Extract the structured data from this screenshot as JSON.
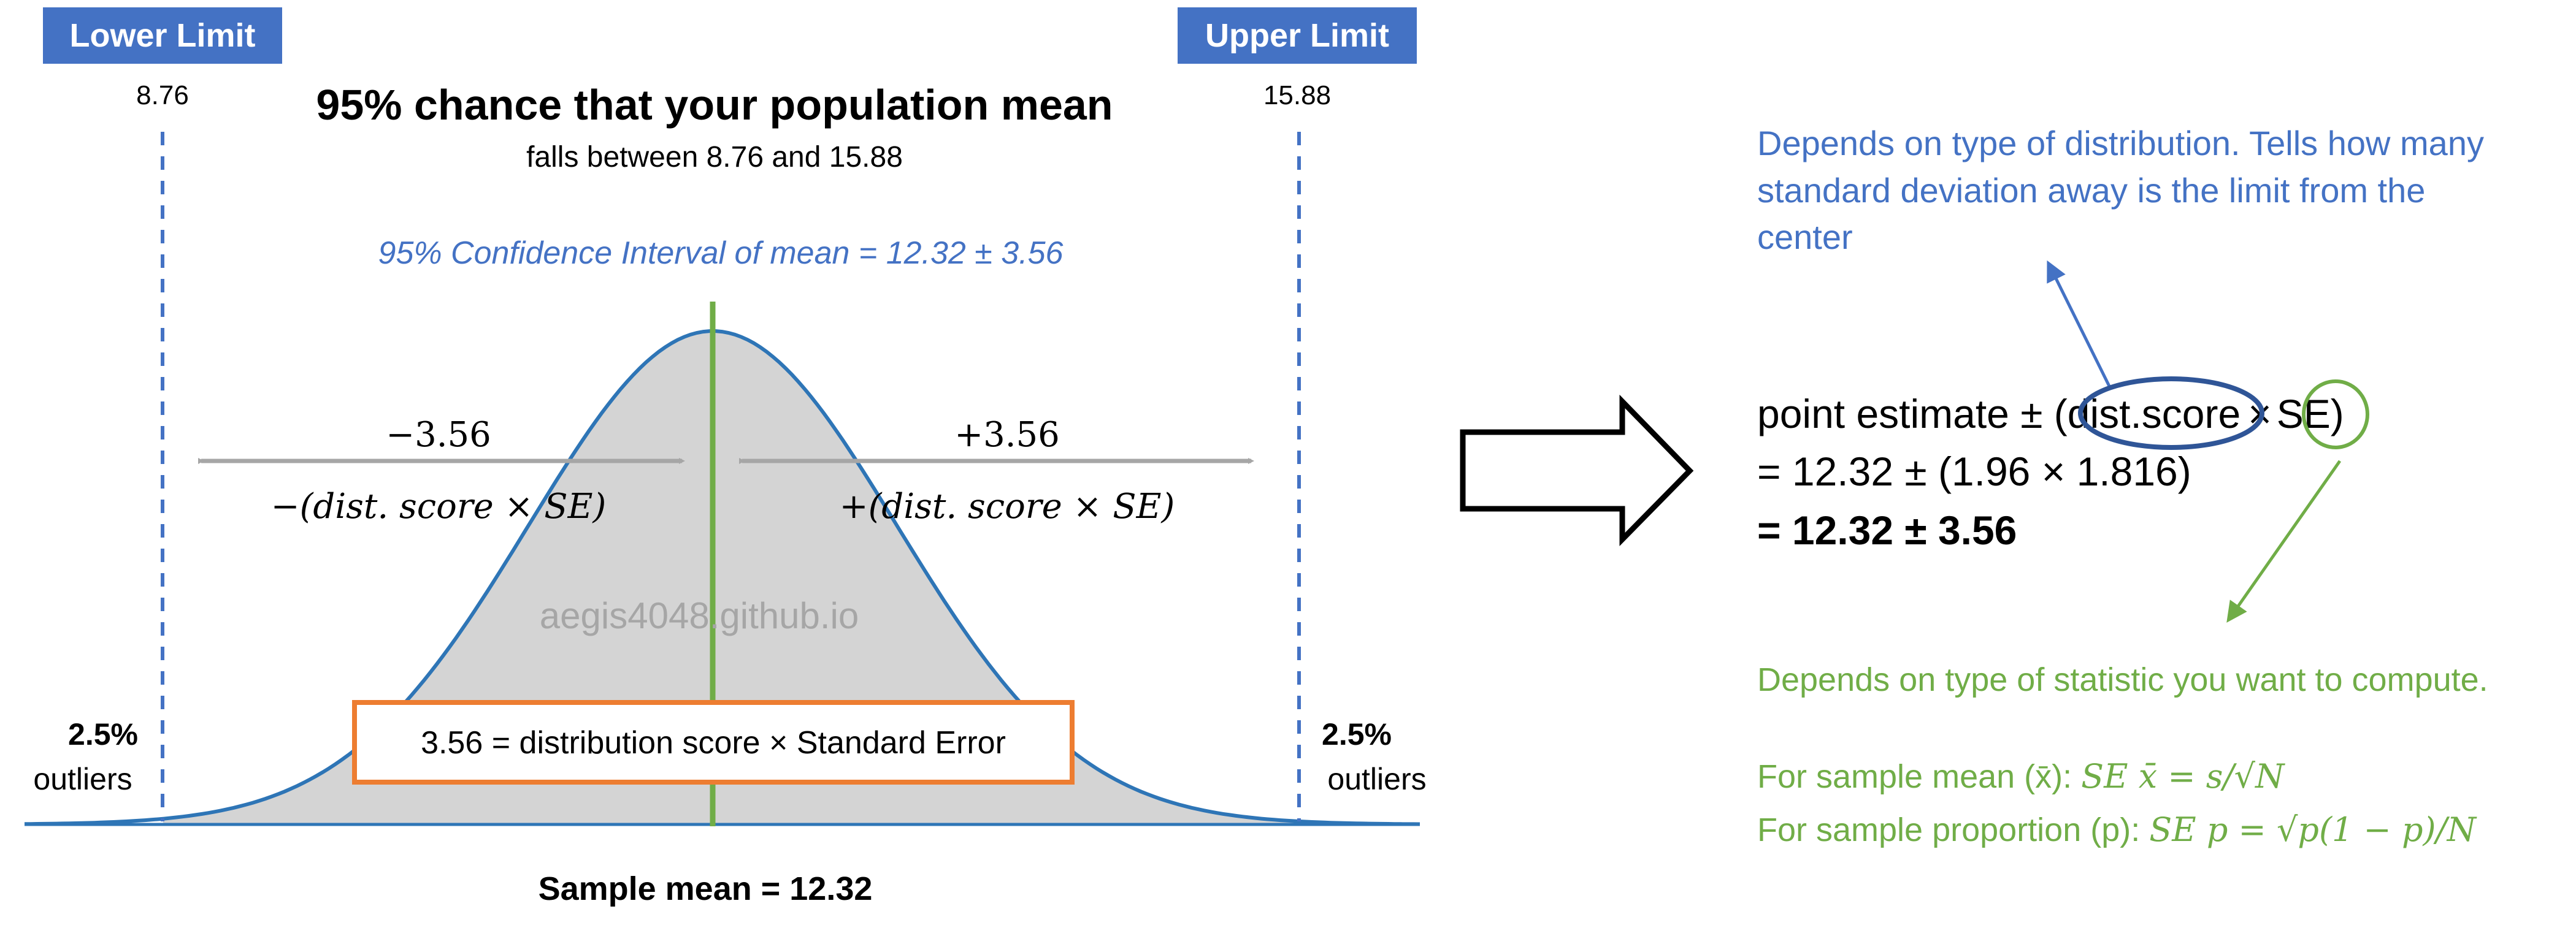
{
  "colors": {
    "blue_label_bg": "#4472c4",
    "dashed_line": "#4472c4",
    "curve_stroke": "#2e75b6",
    "curve_fill": "#d4d4d4",
    "green": "#70ad47",
    "arrow_gray": "#a6a6a6",
    "orange_box": "#ed7d31",
    "blue_text": "#4472c4",
    "watermark": "#a6a6a6",
    "black": "#000000",
    "ellipse_blue": "#2f5597"
  },
  "left": {
    "lower_limit_label": "Lower Limit",
    "lower_limit_value": "8.76",
    "upper_limit_label": "Upper Limit",
    "upper_limit_value": "15.88",
    "title": "95% chance that your population mean",
    "subtitle": "falls between 8.76 and 15.88",
    "ci_text": "95% Confidence Interval of mean = 12.32  ± 3.56",
    "minus_value": "−3.56",
    "plus_value": "+3.56",
    "minus_formula": "−(dist. score × SE)",
    "plus_formula": "+(dist. score × SE)",
    "watermark": "aegis4048.github.io",
    "box_text": "3.56 = distribution score × Standard Error",
    "left_outlier_pct": "2.5%",
    "left_outlier_word": "outliers",
    "right_outlier_pct": "2.5%",
    "right_outlier_word": "outliers",
    "sample_mean": "Sample mean = 12.32"
  },
  "right": {
    "blue_note_line1": "Depends on type of distribution. Tells how many",
    "blue_note_line2": "standard deviation away is the limit from the",
    "blue_note_line3": "center",
    "formula_prefix": "point estimate ± (",
    "formula_dist": "dist.score",
    "formula_times": "×",
    "formula_se": "SE",
    "formula_close": ")",
    "line2": "= 12.32 ± (1.96 × 1.816)",
    "line3": "= 12.32 ± 3.56",
    "green_note": "Depends on type of statistic you want to compute.",
    "mean_prefix": "For sample mean (x̄): ",
    "mean_formula": "SE x̄ = s/√N",
    "prop_prefix": "For sample proportion (p): ",
    "prop_formula": "SE p = √p(1 − p)/N"
  }
}
